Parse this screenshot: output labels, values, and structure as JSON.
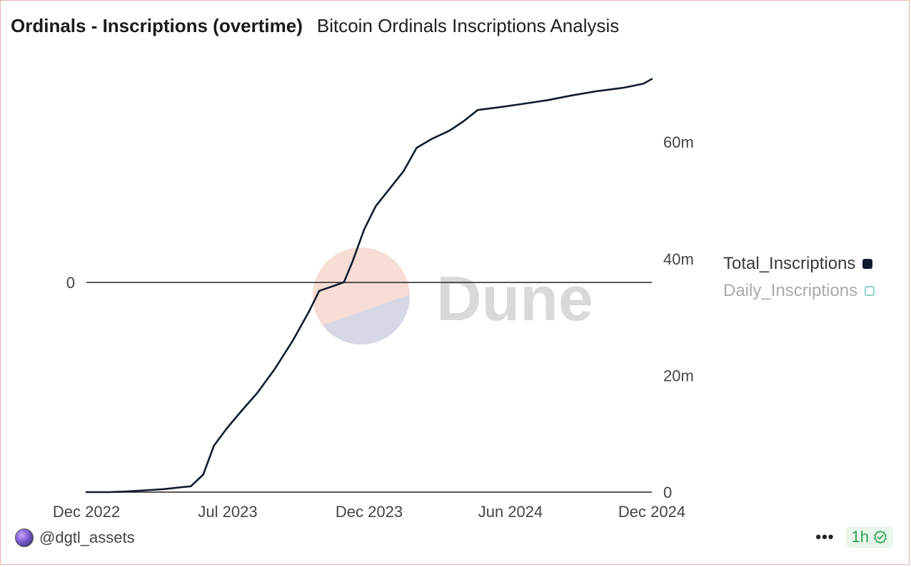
{
  "header": {
    "title": "Ordinals - Inscriptions (overtime)",
    "subtitle": "Bitcoin Ordinals Inscriptions Analysis"
  },
  "footer": {
    "author": "@dgtl_assets",
    "more_label": "•••",
    "refresh_badge": "1h"
  },
  "colors": {
    "line": "#0f1c2e",
    "accent_green": "#2e9e57",
    "inactive_swatch": "#8fd3c8"
  },
  "chart_data": {
    "type": "line",
    "title": "Ordinals - Inscriptions (overtime)",
    "subtitle": "Bitcoin Ordinals Inscriptions Analysis",
    "x_ticks": [
      "Dec 2022",
      "Jul 2023",
      "Dec 2023",
      "Jun 2024",
      "Dec 2024"
    ],
    "x_range": [
      "2022-12-01",
      "2024-12-01"
    ],
    "right_axis": {
      "ticks": [
        "0",
        "20m",
        "40m",
        "60m"
      ],
      "range": [
        0,
        72000000
      ]
    },
    "left_axis": {
      "ticks": [
        "0"
      ]
    },
    "legend": {
      "placement": "right",
      "entries": [
        {
          "name": "Total_Inscriptions",
          "active": true
        },
        {
          "name": "Daily_Inscriptions",
          "active": false
        }
      ]
    },
    "series": [
      {
        "name": "Total_Inscriptions",
        "axis": "right",
        "points": [
          [
            "2022-12-01",
            0
          ],
          [
            "2022-12-30",
            0
          ],
          [
            "2023-01-20",
            100000
          ],
          [
            "2023-02-15",
            300000
          ],
          [
            "2023-03-10",
            500000
          ],
          [
            "2023-04-15",
            1000000
          ],
          [
            "2023-05-01",
            3000000
          ],
          [
            "2023-05-15",
            8000000
          ],
          [
            "2023-06-01",
            11000000
          ],
          [
            "2023-06-20",
            14000000
          ],
          [
            "2023-07-10",
            17000000
          ],
          [
            "2023-08-01",
            21000000
          ],
          [
            "2023-08-25",
            26000000
          ],
          [
            "2023-09-15",
            31000000
          ],
          [
            "2023-09-28",
            34500000
          ],
          [
            "2023-10-20",
            35500000
          ],
          [
            "2023-10-30",
            36000000
          ],
          [
            "2023-11-10",
            39500000
          ],
          [
            "2023-11-25",
            45000000
          ],
          [
            "2023-12-10",
            49000000
          ],
          [
            "2023-12-25",
            51500000
          ],
          [
            "2024-01-15",
            55000000
          ],
          [
            "2024-02-01",
            59000000
          ],
          [
            "2024-02-20",
            60500000
          ],
          [
            "2024-03-15",
            62000000
          ],
          [
            "2024-04-01",
            63500000
          ],
          [
            "2024-04-20",
            65500000
          ],
          [
            "2024-05-20",
            66000000
          ],
          [
            "2024-06-15",
            66500000
          ],
          [
            "2024-07-20",
            67200000
          ],
          [
            "2024-08-20",
            68000000
          ],
          [
            "2024-09-20",
            68700000
          ],
          [
            "2024-10-25",
            69300000
          ],
          [
            "2024-11-20",
            70000000
          ],
          [
            "2024-12-01",
            70800000
          ]
        ]
      },
      {
        "name": "Daily_Inscriptions",
        "axis": "left",
        "points": []
      }
    ]
  }
}
